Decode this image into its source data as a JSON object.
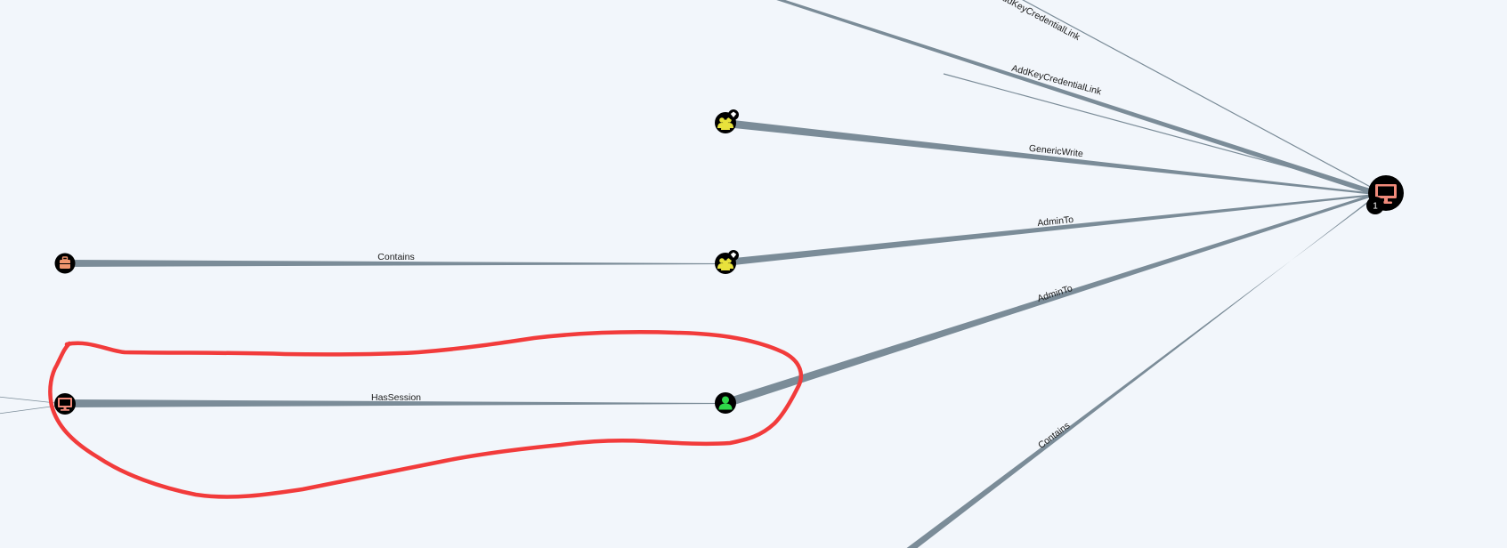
{
  "graph": {
    "colors": {
      "background": "#f2f6fb",
      "edge": "#7b8c98",
      "node_ring": "#000000",
      "computer_icon": "#f08a7a",
      "group_icon": "#e8e23c",
      "user_icon": "#2fd54a",
      "ou_icon": "#f0956e",
      "highlight": "#f23b3b"
    },
    "nodes": [
      {
        "id": "target-computer",
        "type": "computer",
        "icon": "monitor-icon",
        "badge": "1"
      },
      {
        "id": "group-a",
        "type": "group",
        "icon": "group-icon"
      },
      {
        "id": "group-b",
        "type": "group",
        "icon": "group-icon"
      },
      {
        "id": "user",
        "type": "user",
        "icon": "user-icon"
      },
      {
        "id": "ou",
        "type": "ou",
        "icon": "ou-icon"
      },
      {
        "id": "session-computer",
        "type": "computer",
        "icon": "monitor-icon"
      }
    ],
    "edges": [
      {
        "id": "e-top-partial",
        "label": "AddKeyCredentialLink"
      },
      {
        "id": "e-top-unlabeled",
        "label": ""
      },
      {
        "id": "e-addkey",
        "label": "AddKeyCredentialLink"
      },
      {
        "id": "e-genericwrite",
        "label": "GenericWrite"
      },
      {
        "id": "e-adminto-group",
        "label": "AdminTo"
      },
      {
        "id": "e-adminto-user",
        "label": "AdminTo"
      },
      {
        "id": "e-contains-bottom",
        "label": "Contains"
      },
      {
        "id": "e-contains-ou",
        "label": "Contains"
      },
      {
        "id": "e-hassession",
        "label": "HasSession"
      },
      {
        "id": "e-left-a",
        "label": ""
      },
      {
        "id": "e-left-b",
        "label": ""
      }
    ]
  }
}
